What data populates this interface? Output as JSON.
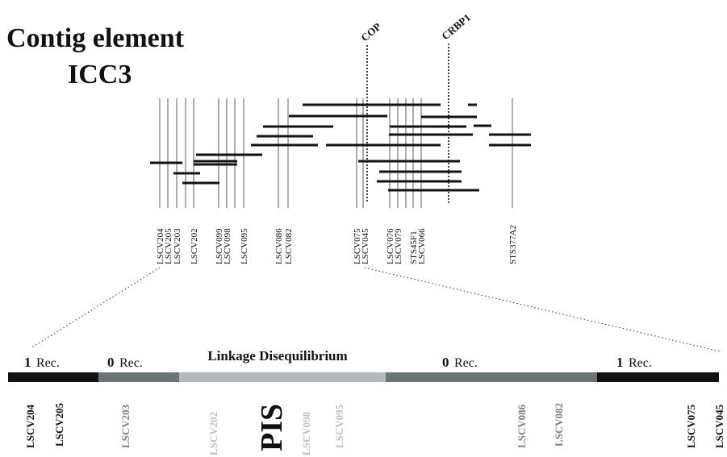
{
  "title": {
    "line1": "Contig element",
    "line2": "ICC3"
  },
  "genes": [
    "COP",
    "CRBP1"
  ],
  "markers": [
    "LSCV204",
    "LSCV205",
    "LSCV203",
    "LSCV202",
    "LSCV099",
    "LSCV098",
    "LSCV095",
    "LSCV086",
    "LSCV082",
    "LSCV075",
    "LSCV045",
    "LSCV076",
    "LSCV079",
    "STS45F1",
    "LSCV066",
    "STS377A2"
  ],
  "recombination": {
    "left_outer": {
      "count": "1",
      "unit": "Rec."
    },
    "left_inner": {
      "count": "0",
      "unit": "Rec."
    },
    "center": "Linkage Disequilibrium",
    "right_inner": {
      "count": "0",
      "unit": "Rec."
    },
    "right_outer": {
      "count": "1",
      "unit": "Rec."
    }
  },
  "bottom_markers": [
    "LSCV204",
    "LSCV205",
    "LSCV203",
    "LSCV202",
    "LSCV098",
    "LSCV095",
    "LSCV086",
    "LSCV082",
    "LSCV075",
    "LSCV045"
  ],
  "pis_label": "PIS",
  "colors": {
    "black_segment": "#111111",
    "dark_gray_segment": "#6d7478",
    "light_gray_segment": "#b4b9bd",
    "black_text": "#111111",
    "dark_gray_text": "#7b8084",
    "light_gray_text": "#babfc3"
  }
}
